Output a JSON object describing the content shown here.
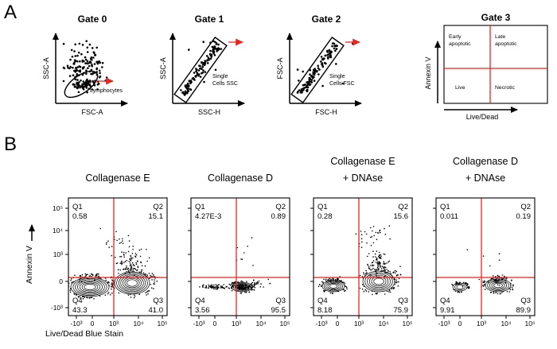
{
  "panels": {
    "a": {
      "letter": "A",
      "gates": [
        {
          "title": "Gate 0",
          "y_label": "SSC-A",
          "x_label": "FSC-A",
          "gate_label": "Lymphocytes"
        },
        {
          "title": "Gate 1",
          "y_label": "SSC-A",
          "x_label": "SSC-H",
          "gate_label_l1": "Single",
          "gate_label_l2": "Cells SSC"
        },
        {
          "title": "Gate 2",
          "y_label": "FSC-A",
          "x_label": "FSC-H",
          "gate_label_l1": "Single",
          "gate_label_l2": "Cells FSC"
        },
        {
          "title": "Gate 3",
          "y_label": "Annexin V",
          "x_label": "Live/Dead",
          "q_top_left_l1": "Early",
          "q_top_left_l2": "apoptotic",
          "q_top_right_l1": "Late",
          "q_top_right_l2": "apoptotic",
          "q_bottom_left": "Live",
          "q_bottom_right": "Necrotic"
        }
      ]
    },
    "b": {
      "letter": "B",
      "y_axis_label": "Annexin V",
      "x_axis_label": "Live/Dead Blue Stain",
      "y_ticks": [
        "10⁵",
        "10⁴",
        "10³",
        "0",
        "-10³"
      ],
      "x_ticks": [
        "-10³",
        "0",
        "10³",
        "10⁴",
        "10⁵"
      ],
      "q_names": {
        "q1": "Q1",
        "q2": "Q2",
        "q3": "Q3",
        "q4": "Q4"
      },
      "plots": [
        {
          "title": "Collagenase E",
          "values": {
            "q1": "0.58",
            "q2": "15.1",
            "q3": "41.0",
            "q4": "43.3"
          }
        },
        {
          "title": "Collagenase D",
          "values": {
            "q1": "4.27E-3",
            "q2": "0.89",
            "q3": "95.5",
            "q4": "3.56"
          }
        },
        {
          "title": "Collagenase E",
          "subtitle": "+ DNAse",
          "values": {
            "q1": "0.28",
            "q2": "15.6",
            "q3": "75.9",
            "q4": "8.18"
          }
        },
        {
          "title": "Collagenase D",
          "subtitle": "+ DNAse",
          "values": {
            "q1": "0.011",
            "q2": "0.19",
            "q3": "89.9",
            "q4": "9.91"
          }
        }
      ]
    }
  },
  "colors": {
    "gate_red": "#e8251f",
    "dot_black": "#000000"
  },
  "chart_data": {
    "type": "scatter",
    "subtype": "flow_cytometry_quadrant_contour",
    "x_axis": {
      "label": "Live/Dead Blue Stain",
      "tick_labels": [
        "-10³",
        "0",
        "10³",
        "10⁴",
        "10⁵"
      ],
      "scale": "biexponential"
    },
    "y_axis": {
      "label": "Annexin V",
      "tick_labels": [
        "-10³",
        "0",
        "10³",
        "10⁴",
        "10⁵"
      ],
      "scale": "biexponential"
    },
    "plots": [
      {
        "title": "Collagenase E",
        "quadrant_percent": {
          "Q1": 0.58,
          "Q2": 15.1,
          "Q3": 41.0,
          "Q4": 43.3
        }
      },
      {
        "title": "Collagenase D",
        "quadrant_percent": {
          "Q1": 0.00427,
          "Q2": 0.89,
          "Q3": 95.5,
          "Q4": 3.56
        }
      },
      {
        "title": "Collagenase E + DNAse",
        "quadrant_percent": {
          "Q1": 0.28,
          "Q2": 15.6,
          "Q3": 75.9,
          "Q4": 8.18
        }
      },
      {
        "title": "Collagenase D + DNAse",
        "quadrant_percent": {
          "Q1": 0.011,
          "Q2": 0.19,
          "Q3": 89.9,
          "Q4": 9.91
        }
      }
    ],
    "gating_strategy": [
      {
        "gate": "Gate 0",
        "x": "FSC-A",
        "y": "SSC-A",
        "selection": "Lymphocytes"
      },
      {
        "gate": "Gate 1",
        "x": "SSC-H",
        "y": "SSC-A",
        "selection": "Single Cells SSC"
      },
      {
        "gate": "Gate 2",
        "x": "FSC-H",
        "y": "FSC-A",
        "selection": "Single Cells FSC"
      },
      {
        "gate": "Gate 3",
        "x": "Live/Dead",
        "y": "Annexin V",
        "quadrants": [
          "Early apoptotic",
          "Late apoptotic",
          "Live",
          "Necrotic"
        ]
      }
    ]
  }
}
